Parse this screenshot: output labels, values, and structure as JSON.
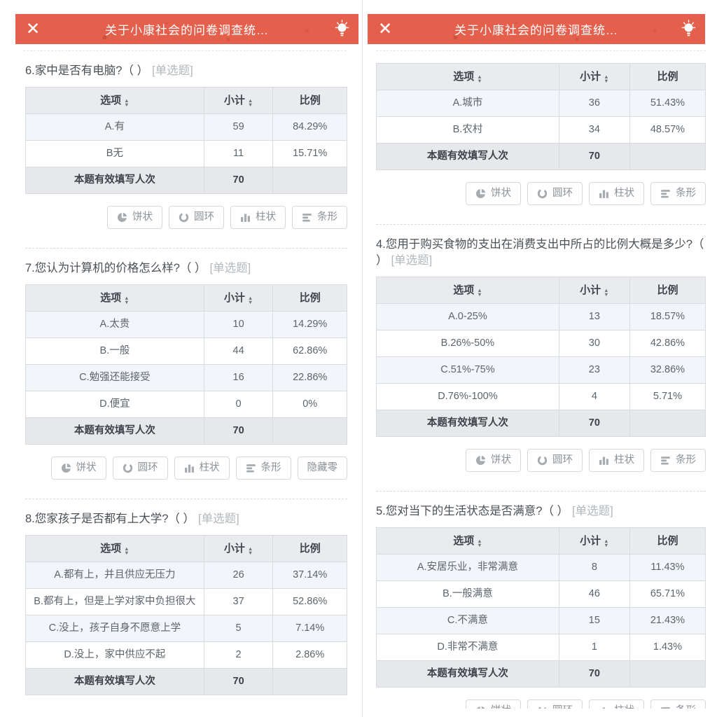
{
  "header": {
    "title": "关于小康社会的问卷调查统…",
    "bg_color": "#e5604c",
    "text_color": "#ffffff"
  },
  "icons": {
    "close": "close-icon",
    "bulb": "lightbulb-icon",
    "sort": "sort-icon",
    "pie": "pie-icon",
    "ring": "ring-chart-icon",
    "column": "column-chart-icon",
    "bar": "bar-chart-icon"
  },
  "colors": {
    "table_header_bg": "#e9ebee",
    "row_odd_bg": "#f2f5f9",
    "row_even_bg": "#ffffff",
    "footer_bg": "#e6e8eb",
    "border": "#d9dcdf",
    "button_text": "#8b9096"
  },
  "table_headers": {
    "option": "选项",
    "subtotal": "小计",
    "ratio": "比例"
  },
  "footer_label": "本题有效填写人次",
  "buttons": {
    "pie": "饼状",
    "ring": "圆环",
    "column": "柱状",
    "bar": "条形",
    "hide_zero": "隐藏零"
  },
  "panels": [
    {
      "sections": [
        {
          "question": "6.家中是否有电脑?（ ）",
          "tag": "[单选题]",
          "rows": [
            [
              "A.有",
              "59",
              "84.29%"
            ],
            [
              "B无",
              "11",
              "15.71%"
            ]
          ],
          "total": "70",
          "buttons": [
            "pie",
            "ring",
            "column",
            "bar"
          ]
        },
        {
          "question": "7.您认为计算机的价格怎么样?（ ）",
          "tag": "[单选题]",
          "rows": [
            [
              "A.太贵",
              "10",
              "14.29%"
            ],
            [
              "B.一般",
              "44",
              "62.86%"
            ],
            [
              "C.勉强还能接受",
              "16",
              "22.86%"
            ],
            [
              "D.便宜",
              "0",
              "0%"
            ]
          ],
          "total": "70",
          "buttons": [
            "pie",
            "ring",
            "column",
            "bar",
            "hide_zero"
          ]
        },
        {
          "question": "8.您家孩子是否都有上大学?（ ）",
          "tag": "[单选题]",
          "rows": [
            [
              "A.都有上，并且供应无压力",
              "26",
              "37.14%"
            ],
            [
              "B.都有上，但是上学对家中负担很大",
              "37",
              "52.86%"
            ],
            [
              "C.没上，孩子自身不愿意上学",
              "5",
              "7.14%"
            ],
            [
              "D.没上，家中供应不起",
              "2",
              "2.86%"
            ]
          ],
          "total": "70",
          "buttons": []
        }
      ]
    },
    {
      "sections": [
        {
          "question": null,
          "tag": null,
          "rows": [
            [
              "A.城市",
              "36",
              "51.43%"
            ],
            [
              "B.农村",
              "34",
              "48.57%"
            ]
          ],
          "total": "70",
          "buttons": [
            "pie",
            "ring",
            "column",
            "bar"
          ]
        },
        {
          "question": "4.您用于购买食物的支出在消费支出中所占的比例大概是多少?（ ）",
          "tag": "[单选题]",
          "rows": [
            [
              "A.0-25%",
              "13",
              "18.57%"
            ],
            [
              "B.26%-50%",
              "30",
              "42.86%"
            ],
            [
              "C.51%-75%",
              "23",
              "32.86%"
            ],
            [
              "D.76%-100%",
              "4",
              "5.71%"
            ]
          ],
          "total": "70",
          "buttons": [
            "pie",
            "ring",
            "column",
            "bar"
          ]
        },
        {
          "question": "5.您对当下的生活状态是否满意?（ ）",
          "tag": "[单选题]",
          "rows": [
            [
              "A.安居乐业，非常满意",
              "8",
              "11.43%"
            ],
            [
              "B.一般满意",
              "46",
              "65.71%"
            ],
            [
              "C.不满意",
              "15",
              "21.43%"
            ],
            [
              "D.非常不满意",
              "1",
              "1.43%"
            ]
          ],
          "total": "70",
          "buttons": [
            "pie",
            "ring",
            "column",
            "bar"
          ],
          "clipped_buttons": true
        }
      ]
    }
  ]
}
